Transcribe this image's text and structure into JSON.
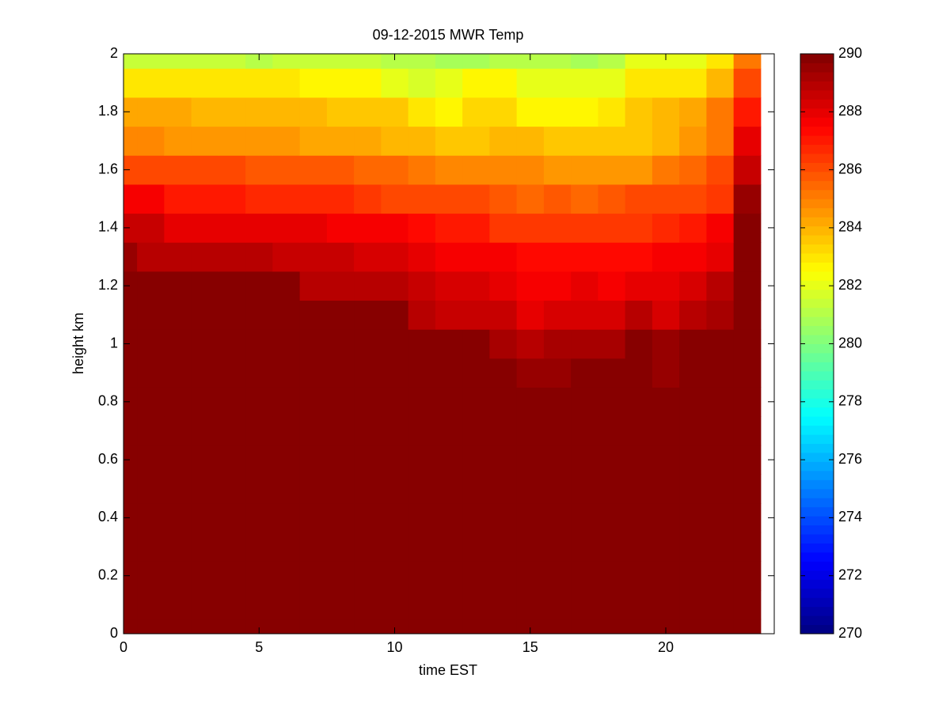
{
  "chart_data": {
    "type": "heatmap",
    "title": "09-12-2015 MWR Temp",
    "x_label": "time EST",
    "y_label": "height km",
    "colormap": "jet",
    "x": [
      0,
      1,
      2,
      3,
      4,
      5,
      6,
      7,
      8,
      9,
      10,
      11,
      12,
      13,
      14,
      15,
      16,
      17,
      18,
      19,
      20,
      21,
      22,
      23
    ],
    "y": [
      0,
      0.1,
      0.2,
      0.3,
      0.4,
      0.5,
      0.6,
      0.7,
      0.8,
      0.9,
      1,
      1.1,
      1.2,
      1.3,
      1.4,
      1.5,
      1.6,
      1.7,
      1.8,
      1.9,
      2
    ],
    "z": [
      [
        290,
        290,
        290,
        290,
        290,
        290,
        290,
        290,
        290,
        290,
        290,
        290,
        290,
        290,
        290,
        290,
        290,
        290,
        290,
        290,
        290,
        290,
        290,
        290
      ],
      [
        290,
        290,
        290,
        290,
        290,
        290,
        290,
        290,
        290,
        290,
        290,
        290,
        290,
        290,
        290,
        290,
        290,
        290,
        290,
        290,
        290,
        290,
        290,
        290
      ],
      [
        290,
        290,
        290,
        290,
        290,
        290,
        290,
        290,
        290,
        290,
        290,
        290,
        290,
        290,
        290,
        290,
        290,
        290,
        290,
        290,
        290,
        290,
        290,
        290
      ],
      [
        290,
        290,
        290,
        290,
        290,
        290,
        290,
        290,
        290,
        290,
        290,
        290,
        290,
        290,
        290,
        290,
        290,
        290,
        290,
        290,
        290,
        290,
        290,
        290
      ],
      [
        290,
        290,
        290,
        290,
        290,
        290,
        290,
        290,
        290,
        290,
        290,
        290,
        290,
        290,
        290,
        290,
        290,
        290,
        290,
        290,
        290,
        290,
        290,
        290
      ],
      [
        290,
        290,
        290,
        290,
        290,
        290,
        290,
        290,
        290,
        290,
        290,
        290,
        290,
        290,
        290,
        290,
        290,
        290,
        290,
        290,
        290,
        290,
        290,
        290
      ],
      [
        290,
        290,
        290,
        290,
        290,
        290,
        290,
        290,
        290,
        290,
        290,
        290,
        290,
        290,
        290,
        290,
        290,
        290,
        290,
        290,
        290,
        290,
        290,
        290
      ],
      [
        290,
        290,
        290,
        290,
        290,
        290,
        290,
        290,
        290,
        290,
        290,
        290,
        290,
        290,
        290,
        290,
        290,
        290,
        290,
        290,
        290,
        290,
        290,
        290
      ],
      [
        290,
        290,
        290,
        290,
        290,
        290,
        290,
        290,
        290,
        290,
        290,
        290,
        290,
        290,
        290,
        290,
        290,
        290,
        290,
        290,
        290,
        290,
        290,
        290
      ],
      [
        290,
        290,
        290,
        290,
        290,
        290,
        290,
        290,
        290,
        290,
        290,
        290,
        290,
        290,
        290,
        289.6,
        289.6,
        290,
        290,
        290,
        289.6,
        290,
        290,
        290
      ],
      [
        290,
        290,
        290,
        290,
        290,
        290,
        290,
        290,
        290,
        290,
        290,
        290,
        290,
        290,
        289.3,
        289,
        289.3,
        289.3,
        289.3,
        290,
        289.5,
        290,
        290,
        290
      ],
      [
        290,
        290,
        290,
        290,
        290,
        290,
        290,
        290,
        290,
        290,
        290,
        289,
        288.6,
        288.6,
        288.7,
        288,
        288.4,
        288.4,
        288.4,
        288.8,
        288.4,
        289,
        289.3,
        290
      ],
      [
        290,
        290,
        290,
        290,
        290,
        290,
        290,
        289,
        289,
        289,
        288.8,
        288.6,
        288.4,
        288.2,
        288,
        287.7,
        287.7,
        288,
        287.8,
        288,
        288,
        288.4,
        288.8,
        290
      ],
      [
        289.5,
        289,
        288.8,
        288.8,
        288.8,
        288.8,
        288.5,
        288.5,
        288.5,
        288.3,
        288.2,
        288,
        287.7,
        287.7,
        287.5,
        287.3,
        287.3,
        287.3,
        287.3,
        287.3,
        287.5,
        287.8,
        288,
        290
      ],
      [
        288.5,
        288.5,
        288,
        288,
        288,
        288,
        288,
        288,
        287.7,
        287.7,
        287.5,
        287.3,
        287,
        287,
        286.5,
        286.5,
        286.5,
        286.5,
        286.5,
        286.5,
        286.8,
        287,
        287.5,
        290
      ],
      [
        287.5,
        287.5,
        287,
        287,
        287,
        286.8,
        286.8,
        286.8,
        286.8,
        286.5,
        286.2,
        286.2,
        286.2,
        286.2,
        285.8,
        285.5,
        285.8,
        285.5,
        285.8,
        286,
        286,
        286,
        286.5,
        289.5
      ],
      [
        286,
        286,
        286,
        286,
        286,
        285.8,
        285.8,
        285.8,
        285.8,
        285.5,
        285.5,
        285,
        284.8,
        284.8,
        284.8,
        284.8,
        284.5,
        284.5,
        284.5,
        284.5,
        285,
        285.5,
        286,
        288.5
      ],
      [
        284.8,
        284.8,
        284.5,
        284.5,
        284.5,
        284.5,
        284.5,
        284.2,
        284.2,
        284.2,
        284,
        284,
        283.5,
        283.5,
        284,
        284,
        283.7,
        283.7,
        283.7,
        283.7,
        284,
        284.5,
        285.3,
        288
      ],
      [
        284.2,
        284.2,
        284.2,
        283.8,
        283.8,
        283.8,
        283.8,
        283.8,
        283.5,
        283.5,
        283.5,
        283,
        282.7,
        283.3,
        283.3,
        282.5,
        282.5,
        282.5,
        283,
        283.5,
        283.8,
        284.3,
        285,
        287
      ],
      [
        283,
        283,
        283,
        283,
        283,
        283,
        283,
        282.7,
        282.7,
        282.7,
        282,
        281.7,
        282,
        282.5,
        282.5,
        282,
        282,
        282,
        282,
        283,
        283,
        283,
        284,
        286
      ],
      [
        281.5,
        281.5,
        281.5,
        281.5,
        281.5,
        281,
        281.5,
        281.3,
        281.3,
        281.3,
        281,
        281,
        280.8,
        280.8,
        281.2,
        281,
        281,
        280.8,
        281,
        282,
        282,
        282,
        283,
        285
      ]
    ],
    "xlim": [
      0,
      24
    ],
    "ylim": [
      0,
      2
    ],
    "xticks": [
      0,
      5,
      10,
      15,
      20
    ],
    "yticks": [
      0,
      0.2,
      0.4,
      0.6,
      0.8,
      1,
      1.2,
      1.4,
      1.6,
      1.8,
      2
    ],
    "clim": [
      270,
      290
    ],
    "cticks": [
      270,
      272,
      274,
      276,
      278,
      280,
      282,
      284,
      286,
      288,
      290
    ]
  }
}
